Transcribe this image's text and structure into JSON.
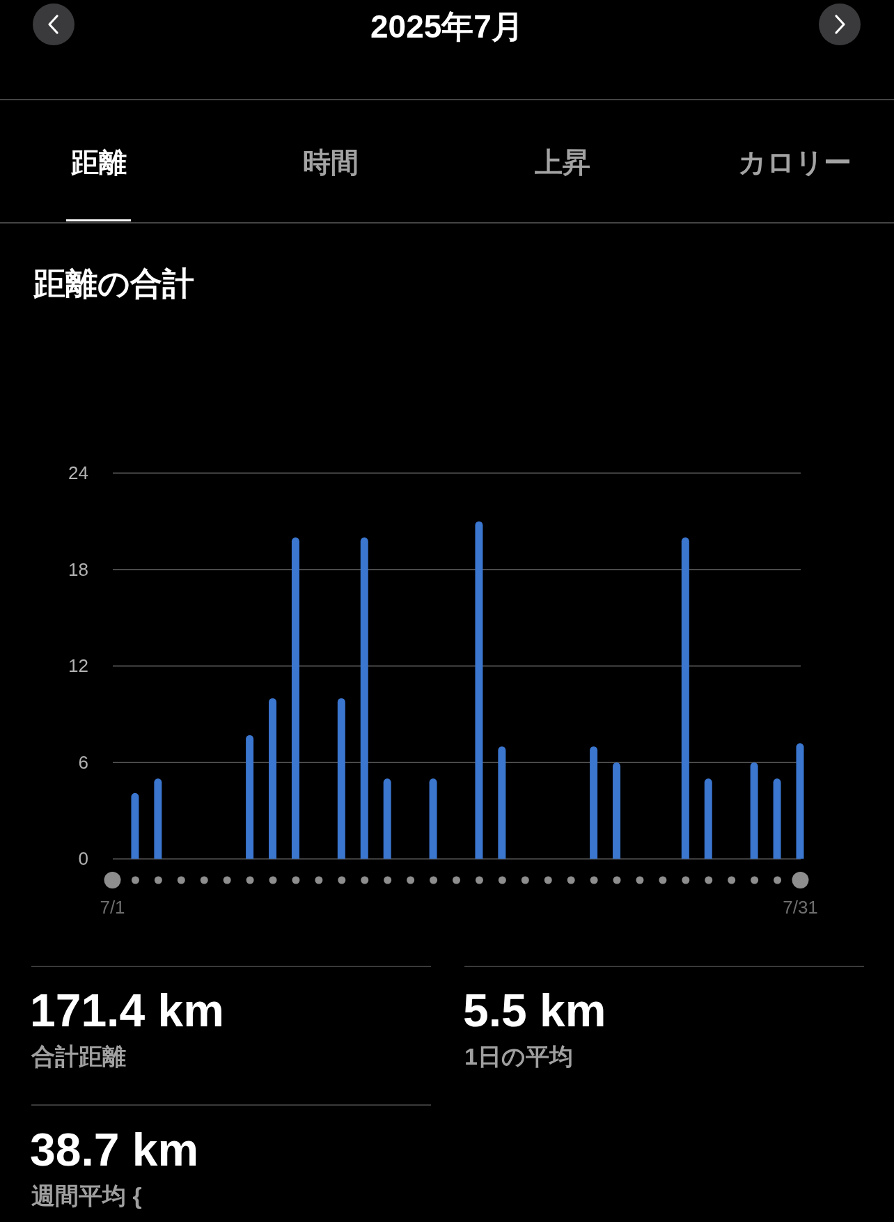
{
  "chart_data": {
    "type": "bar",
    "title": "距離の合計",
    "subtitle": "2025年7月",
    "categories": [
      "7/1",
      null,
      null,
      null,
      null,
      null,
      null,
      null,
      null,
      null,
      null,
      null,
      null,
      null,
      null,
      null,
      null,
      null,
      null,
      null,
      null,
      null,
      null,
      null,
      null,
      null,
      null,
      null,
      null,
      null,
      "7/31"
    ],
    "values": [
      0,
      4.1,
      5,
      0,
      0,
      0,
      7.7,
      10,
      20,
      0,
      10,
      20,
      5,
      0,
      5,
      0,
      21,
      7,
      0,
      0,
      0,
      7,
      6,
      0,
      0,
      20,
      5,
      0,
      6,
      5,
      7.2
    ],
    "color": "#3b76cf",
    "ylim": [
      0,
      24
    ],
    "yticks": [
      0,
      6,
      12,
      18,
      24
    ],
    "grid": "y",
    "annotations": [
      "距離",
      "時間",
      "上昇",
      "カロリー",
      "171.4 km",
      "合計距離",
      "5.5 km",
      "1日の平均",
      "38.7 km",
      "週間平均 {"
    ]
  }
}
